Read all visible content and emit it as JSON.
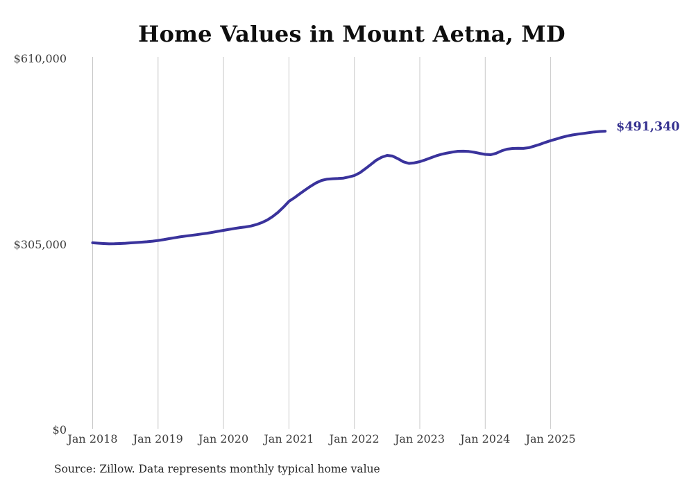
{
  "colors": {
    "background": "#ffffff",
    "line": "#3a339c",
    "end_label": "#34308f",
    "gridline": "#c9c9c9",
    "tick_label": "#3d3d3d",
    "title": "#0e0e0e",
    "source": "#272727"
  },
  "source_note": "Source: Zillow. Data represents monthly typical home value",
  "chart_data": {
    "type": "line",
    "title": "Home Values in Mount Aetna, MD",
    "frequency": "monthly",
    "x_start": "2018-01",
    "x_end": "2025-11",
    "x_tick_labels": [
      "Jan 2018",
      "Jan 2019",
      "Jan 2020",
      "Jan 2021",
      "Jan 2022",
      "Jan 2023",
      "Jan 2024",
      "Jan 2025"
    ],
    "y_tick_labels": [
      "$0",
      "$305,000",
      "$610,000"
    ],
    "y_tick_values": [
      0,
      305000,
      610000
    ],
    "ylim": [
      0,
      610000
    ],
    "grid": "vertical",
    "legend": "none",
    "end_label": "$491,340",
    "end_value": 491340,
    "values": [
      308000,
      307300,
      306700,
      306300,
      306400,
      306700,
      307200,
      307800,
      308400,
      309000,
      309700,
      310600,
      311700,
      313100,
      314700,
      316200,
      317600,
      318900,
      320100,
      321200,
      322400,
      323700,
      325200,
      326800,
      328400,
      330000,
      331500,
      332800,
      334000,
      335500,
      337800,
      341000,
      345200,
      351000,
      358000,
      366500,
      376000,
      382000,
      388500,
      395000,
      401000,
      406500,
      410500,
      412500,
      413200,
      413500,
      414200,
      416000,
      418400,
      423000,
      429500,
      436500,
      443500,
      448500,
      451500,
      450500,
      446000,
      441000,
      438400,
      439300,
      441200,
      444200,
      447500,
      450800,
      453400,
      455400,
      457000,
      458300,
      458500,
      458000,
      456600,
      454800,
      453200,
      452700,
      455000,
      459000,
      461800,
      462900,
      463100,
      463000,
      464200,
      466800,
      469700,
      472800,
      475800,
      478400,
      481000,
      483300,
      485100,
      486500,
      487700,
      488900,
      490000,
      490800,
      491340
    ]
  }
}
